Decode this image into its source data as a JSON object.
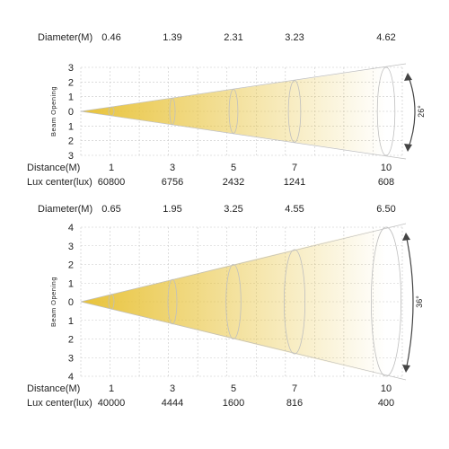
{
  "colors": {
    "beam": "#e8c33a",
    "grid": "#c8c8c8",
    "text": "#222222",
    "ring": "#bfbfbf"
  },
  "chart_data": [
    {
      "type": "beam-diagram",
      "beam_angle_label": "26°",
      "diameter_label": "Diameter(M)",
      "diameters": [
        "0.46",
        "1.39",
        "2.31",
        "3.23",
        "4.62"
      ],
      "axis_label": "Beam Opening",
      "y_ticks": [
        "3",
        "2",
        "1",
        "0",
        "1",
        "2",
        "3"
      ],
      "distance_label": "Distance(M)",
      "distances": [
        "1",
        "3",
        "5",
        "7",
        "10"
      ],
      "lux_label": "Lux center(lux)",
      "lux_values": [
        "60800",
        "6756",
        "2432",
        "1241",
        "608"
      ],
      "y_max": 3,
      "x_max": 11
    },
    {
      "type": "beam-diagram",
      "beam_angle_label": "36°",
      "diameter_label": "Diameter(M)",
      "diameters": [
        "0.65",
        "1.95",
        "3.25",
        "4.55",
        "6.50"
      ],
      "axis_label": "Beam Opening",
      "y_ticks": [
        "4",
        "3",
        "2",
        "1",
        "0",
        "1",
        "2",
        "3",
        "4"
      ],
      "distance_label": "Distance(M)",
      "distances": [
        "1",
        "3",
        "5",
        "7",
        "10"
      ],
      "lux_label": "Lux center(lux)",
      "lux_values": [
        "40000",
        "4444",
        "1600",
        "816",
        "400"
      ],
      "y_max": 4,
      "x_max": 11
    }
  ]
}
